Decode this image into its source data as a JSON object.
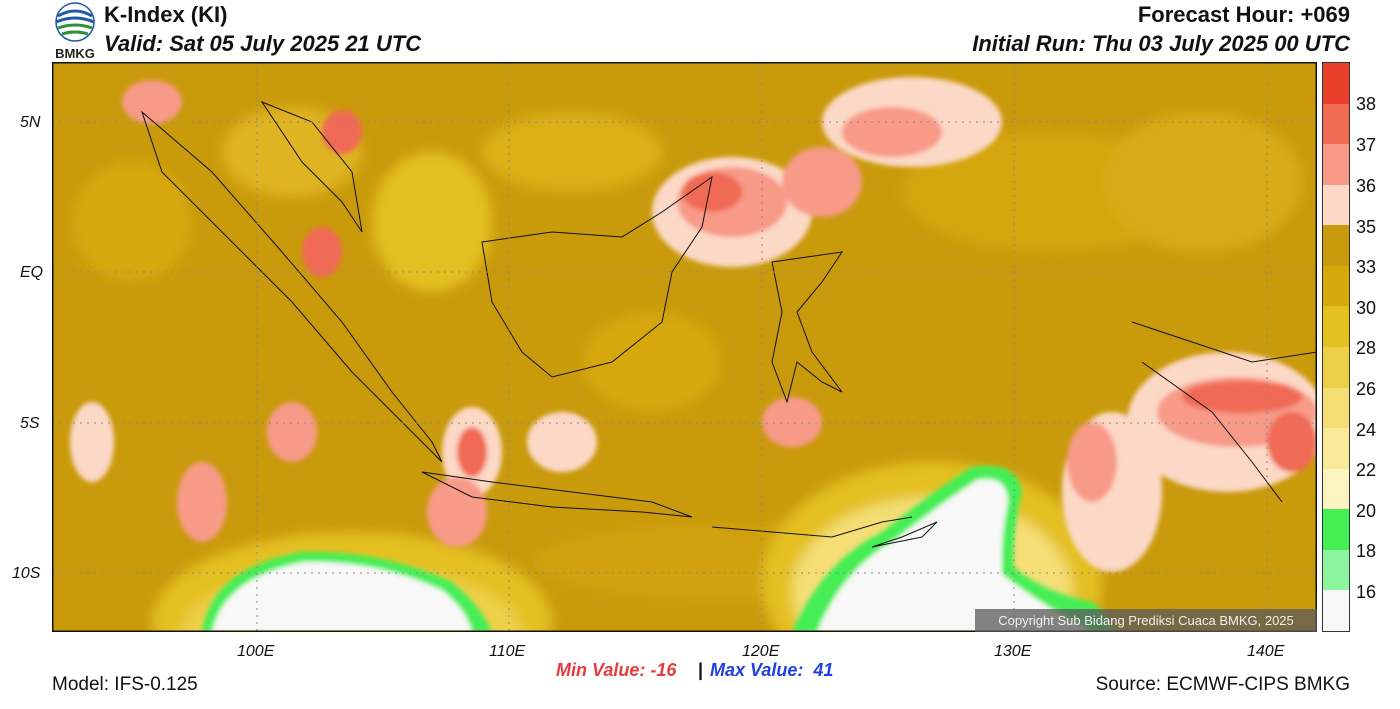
{
  "header": {
    "title": "K-Index (KI)",
    "valid": "Valid: Sat 05 July 2025 21 UTC",
    "forecast_hour": "Forecast Hour: +069",
    "initial_run": "Initial Run: Thu 03 July 2025 00 UTC",
    "logo_text": "BMKG"
  },
  "map": {
    "lat_ticks": [
      "5N",
      "EQ",
      "5S",
      "10S"
    ],
    "lon_ticks": [
      "100E",
      "110E",
      "120E",
      "130E",
      "140E"
    ],
    "copyright": "Copyright Sub Bidang Prediksi Cuaca BMKG, 2025"
  },
  "colorbar": {
    "labels": [
      "38",
      "37",
      "36",
      "35",
      "33",
      "30",
      "28",
      "26",
      "24",
      "22",
      "20",
      "18",
      "16"
    ],
    "colors": [
      "#e8402a",
      "#f06a54",
      "#f89a88",
      "#fcd8c6",
      "#c99a0c",
      "#d6a80c",
      "#e4c020",
      "#eed048",
      "#f4de74",
      "#f8ea98",
      "#fcf4c0",
      "#44ee55",
      "#8cf49c",
      "#f8f8f8"
    ]
  },
  "stats": {
    "min_label": "Min Value: -16",
    "separator": "|",
    "max_label": "Max Value:  41"
  },
  "footer": {
    "model": "Model: IFS-0.125",
    "source": "Source: ECMWF-CIPS BMKG"
  }
}
